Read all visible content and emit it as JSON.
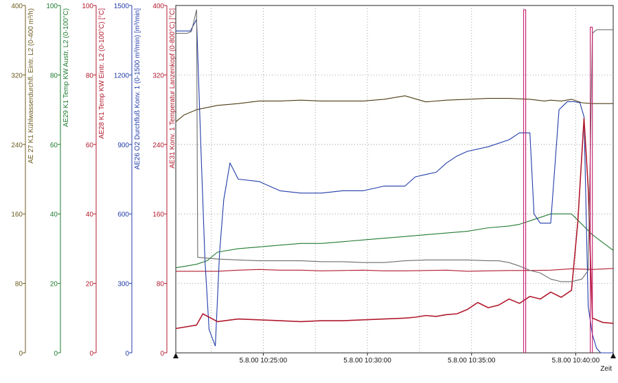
{
  "chart_data": {
    "type": "line",
    "xlabel": "Zeit",
    "x_ticks": [
      "5.8.00 10:25:00",
      "5.8.00 10:30:00",
      "5.8.00 10:35:00",
      "5.8.00 10:40:00"
    ],
    "x_domain": [
      0,
      21
    ],
    "grid": true,
    "axes": [
      {
        "id": "ae27",
        "label": "AE 27 K1 Kühlwasserdurchfl. Eintr. L2 (0-400 m³/h)",
        "color": "#6b5a1e",
        "ylim": [
          0,
          400
        ],
        "ticks": [
          "0",
          "80",
          "160",
          "240",
          "320",
          "400"
        ]
      },
      {
        "id": "ae29",
        "label": "AE29 K1 Temp KW Austr. L2  (0-100°C)",
        "color": "#1f7a2e",
        "ylim": [
          0,
          100
        ],
        "ticks": [
          "0",
          "20",
          "40",
          "60",
          "80",
          "100"
        ]
      },
      {
        "id": "ae28",
        "label": "AE28 K1 Temp KW Eintr. L2  (0-100°C) [°C]",
        "color": "#b0182b",
        "ylim": [
          0,
          100
        ],
        "ticks": [
          "0",
          "20",
          "40",
          "60",
          "80",
          "100"
        ]
      },
      {
        "id": "ae26",
        "label": "AE26 O2 Durchfluß Konv. 1  (0-1500 m³/min) [m³/min]",
        "color": "#1f3aa8",
        "ylim": [
          0,
          1500
        ],
        "ticks": [
          "0",
          "300",
          "600",
          "900",
          "1200",
          "1500"
        ]
      },
      {
        "id": "ae31",
        "label": "AE31 Konv. 1 Temperatur Lanzenkopf  (0-800°C) [°C]",
        "color": "#b0182b",
        "ylim": [
          0,
          400
        ],
        "ticks": [
          "0",
          "80",
          "160",
          "240",
          "320",
          "400"
        ]
      }
    ],
    "series": [
      {
        "axis": "ae27",
        "color": "#4a3a10",
        "x": [
          0,
          0.4,
          1,
          2,
          3,
          4,
          5,
          6,
          7,
          8,
          9,
          10,
          11,
          12,
          13,
          14,
          15,
          16,
          17,
          17.7,
          18,
          18.5,
          19,
          19.5,
          20,
          21
        ],
        "y": [
          266,
          274,
          280,
          285,
          287,
          290,
          290,
          291,
          290,
          290,
          290,
          292,
          296,
          289,
          291,
          292,
          293,
          293,
          292,
          290,
          291,
          290,
          292,
          288,
          287,
          287
        ]
      },
      {
        "axis": "ae29",
        "color": "#1f7a2e",
        "x": [
          0,
          0.5,
          1,
          1.5,
          2,
          3,
          4,
          5,
          6,
          7,
          8,
          9,
          10,
          11,
          12,
          13,
          14,
          15,
          16,
          16.5,
          17,
          17.5,
          18,
          18.5,
          19,
          20,
          21
        ],
        "y": [
          24.5,
          25,
          25.5,
          26.5,
          29,
          30,
          30.5,
          31,
          31.5,
          31.5,
          32,
          32.5,
          33,
          33.5,
          34,
          34.5,
          35,
          36,
          36.5,
          37,
          38,
          39,
          40,
          40,
          40,
          34,
          29.5
        ]
      },
      {
        "axis": "ae28",
        "color": "#b0182b",
        "x": [
          0,
          1,
          2,
          3,
          4,
          5,
          6,
          7,
          8,
          9,
          10,
          11,
          12,
          13,
          14,
          15,
          16,
          17,
          18,
          19,
          20,
          21
        ],
        "y": [
          23.5,
          23.5,
          23.5,
          23.8,
          24,
          23.8,
          23.8,
          23.6,
          23.7,
          23.8,
          23.6,
          23.6,
          23.7,
          23.8,
          23.5,
          23.6,
          23.7,
          23.7,
          23.8,
          24.2,
          24,
          24.3
        ]
      },
      {
        "axis": "ae26",
        "color": "#1f3aa8",
        "x": [
          0,
          0.7,
          1,
          1.2,
          1.4,
          1.6,
          1.9,
          2.1,
          2.3,
          2.6,
          3,
          4,
          5,
          6,
          7,
          8,
          9,
          10,
          11,
          11.5,
          12,
          12.5,
          13,
          13.5,
          14,
          15,
          16,
          16.5,
          17,
          17.2,
          17.5,
          18,
          18.4,
          18.8,
          19.1,
          19.4,
          19.6,
          19.8,
          20,
          20.2,
          20.4,
          21
        ],
        "y": [
          1390,
          1390,
          1440,
          900,
          400,
          100,
          30,
          430,
          660,
          820,
          750,
          740,
          700,
          690,
          690,
          700,
          700,
          720,
          720,
          760,
          770,
          780,
          820,
          850,
          870,
          890,
          920,
          950,
          950,
          600,
          560,
          560,
          1050,
          1085,
          1085,
          1080,
          1020,
          200,
          80,
          20,
          0,
          0
        ]
      },
      {
        "axis": "ae31",
        "color": "#b0182b",
        "x": [
          0,
          1,
          1.3,
          2,
          3,
          4,
          5,
          6,
          7,
          8,
          9,
          10,
          11,
          11.5,
          12,
          12.5,
          13,
          13.5,
          14,
          14.5,
          15,
          15.5,
          16,
          16.5,
          17,
          17.5,
          18,
          18.5,
          19,
          19.3,
          19.6,
          19.8,
          20,
          20.5,
          21
        ],
        "y": [
          28,
          32,
          45,
          36,
          39,
          38,
          37,
          36,
          37,
          37,
          38,
          39,
          40,
          41,
          43,
          42,
          44,
          45,
          50,
          58,
          52,
          55,
          62,
          57,
          65,
          62,
          70,
          64,
          72,
          150,
          270,
          190,
          40,
          35,
          34
        ]
      },
      {
        "axis": "ae27",
        "color": "#6a6a6a",
        "x": [
          0,
          0.55,
          0.75,
          1.0,
          1.05,
          2,
          3,
          4,
          5,
          6,
          7,
          8,
          9,
          10,
          11,
          12,
          13,
          14,
          15,
          15.5,
          16,
          16.5,
          17,
          17.5,
          18,
          18.5,
          19,
          19.5,
          19.8,
          20,
          20.2,
          21
        ],
        "y": [
          368,
          368,
          370,
          395,
          110,
          108,
          107,
          106,
          106,
          106,
          105,
          105,
          104,
          104,
          106,
          107,
          107,
          107,
          106,
          106,
          104,
          100,
          95,
          92,
          85,
          82,
          82,
          85,
          95,
          368,
          372,
          372
        ]
      },
      {
        "axis": "ae31",
        "color": "#c41a6b",
        "x": [
          16.7,
          16.7,
          16.8,
          16.8
        ],
        "y": [
          0,
          395,
          395,
          0
        ]
      },
      {
        "axis": "ae31",
        "color": "#c41a6b",
        "x": [
          19.9,
          19.9,
          20.0,
          20.0
        ],
        "y": [
          0,
          375,
          375,
          0
        ]
      }
    ]
  }
}
